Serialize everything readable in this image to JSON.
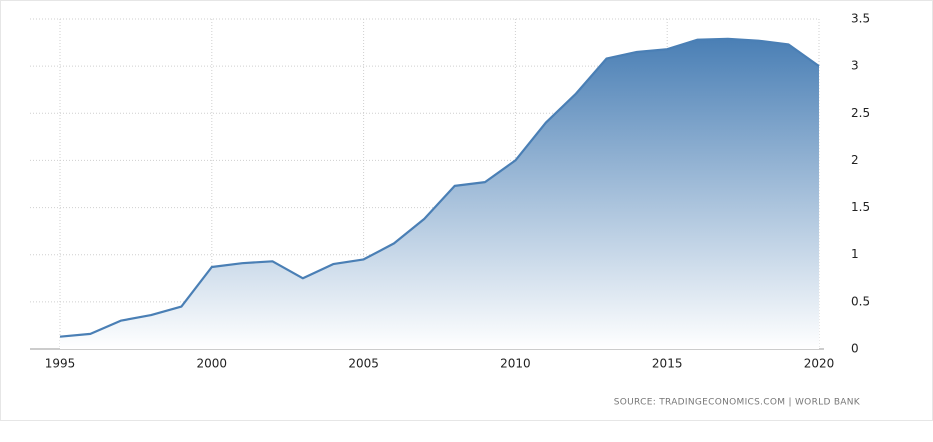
{
  "chart_data": {
    "type": "area",
    "x": [
      1995,
      1996,
      1997,
      1998,
      1999,
      2000,
      2001,
      2002,
      2003,
      2004,
      2005,
      2006,
      2007,
      2008,
      2009,
      2010,
      2011,
      2012,
      2013,
      2014,
      2015,
      2016,
      2017,
      2018,
      2019,
      2020
    ],
    "values": [
      0.13,
      0.16,
      0.3,
      0.36,
      0.45,
      0.87,
      0.91,
      0.93,
      0.75,
      0.9,
      0.95,
      1.12,
      1.38,
      1.73,
      1.77,
      2.0,
      2.4,
      2.71,
      3.08,
      3.15,
      3.18,
      3.28,
      3.29,
      3.27,
      3.23,
      3.0
    ],
    "color": "#4a7fb5",
    "xlim": [
      1995,
      2020
    ],
    "xticks": [
      1995,
      2000,
      2005,
      2010,
      2015,
      2020
    ],
    "ylim": [
      0,
      3.5
    ],
    "yticks": [
      0,
      0.5,
      1,
      1.5,
      2,
      2.5,
      3,
      3.5
    ],
    "grid": true,
    "source": "SOURCE: TRADINGECONOMICS.COM | WORLD BANK"
  }
}
